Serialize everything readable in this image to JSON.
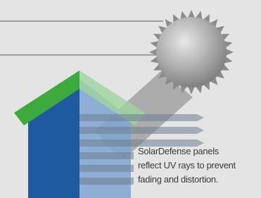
{
  "caption": {
    "lines": [
      "SolarDefense panels",
      "reflect UV rays to prevent",
      "fading and distortion."
    ]
  }
}
